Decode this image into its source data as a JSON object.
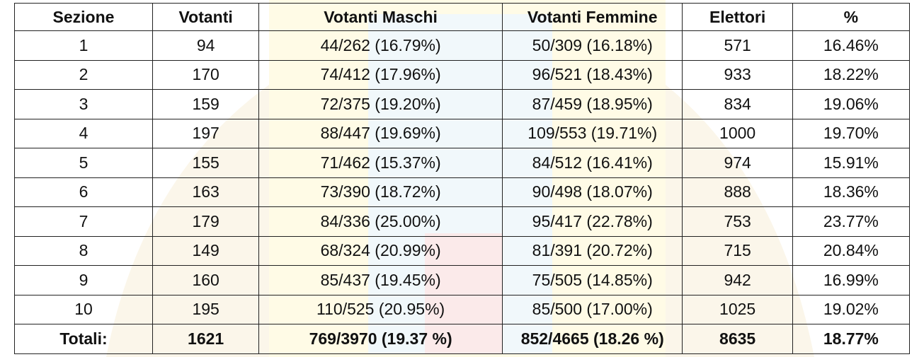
{
  "table": {
    "header": [
      "Sezione",
      "Votanti",
      "Votanti Maschi",
      "Votanti Femmine",
      "Elettori",
      "%"
    ],
    "rows": [
      [
        "1",
        "94",
        "44/262 (16.79%)",
        "50/309 (16.18%)",
        "571",
        "16.46%"
      ],
      [
        "2",
        "170",
        "74/412 (17.96%)",
        "96/521 (18.43%)",
        "933",
        "18.22%"
      ],
      [
        "3",
        "159",
        "72/375 (19.20%)",
        "87/459 (18.95%)",
        "834",
        "19.06%"
      ],
      [
        "4",
        "197",
        "88/447 (19.69%)",
        "109/553 (19.71%)",
        "1000",
        "19.70%"
      ],
      [
        "5",
        "155",
        "71/462 (15.37%)",
        "84/512 (16.41%)",
        "974",
        "15.91%"
      ],
      [
        "6",
        "163",
        "73/390 (18.72%)",
        "90/498 (18.07%)",
        "888",
        "18.36%"
      ],
      [
        "7",
        "179",
        "84/336 (25.00%)",
        "95/417 (22.78%)",
        "753",
        "23.77%"
      ],
      [
        "8",
        "149",
        "68/324 (20.99%)",
        "81/391 (20.72%)",
        "715",
        "20.84%"
      ],
      [
        "9",
        "160",
        "85/437 (19.45%)",
        "75/505 (14.85%)",
        "942",
        "16.99%"
      ],
      [
        "10",
        "195",
        "110/525 (20.95%)",
        "85/500 (17.00%)",
        "1025",
        "19.02%"
      ]
    ],
    "totals": [
      "Totali:",
      "1621",
      "769/3970 (19.37 %)",
      "852/4665 (18.26 %)",
      "8635",
      "18.77%"
    ]
  }
}
